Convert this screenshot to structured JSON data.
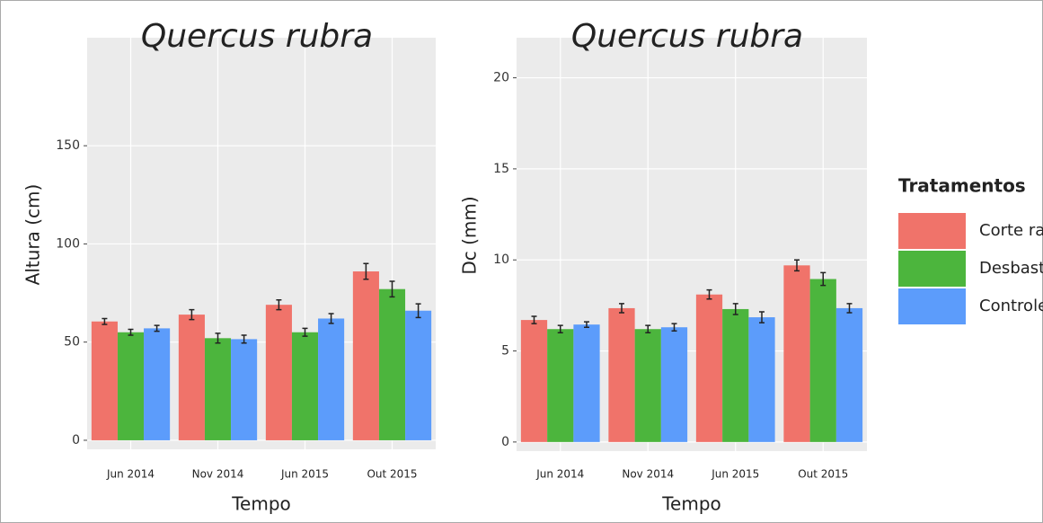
{
  "chart_data": [
    {
      "type": "bar",
      "title": "Quercus rubra",
      "y_label": "Altura (cm)",
      "x_label": "Tempo",
      "categories": [
        "Jun 2014",
        "Nov 2014",
        "Jun 2015",
        "Out  2015"
      ],
      "series": [
        {
          "color": "#f0736a",
          "values": [
            60.5,
            64,
            69,
            86
          ],
          "errors": [
            1.5,
            2.5,
            2.5,
            4
          ]
        },
        {
          "color": "#4cb53d",
          "values": [
            55,
            52,
            55,
            77
          ],
          "errors": [
            1.5,
            2.5,
            2,
            4
          ]
        },
        {
          "color": "#5c9cfb",
          "values": [
            57,
            51.5,
            62,
            66
          ],
          "errors": [
            1.5,
            2,
            2.5,
            3.5
          ]
        }
      ],
      "ylim": [
        -4.6,
        205
      ],
      "yticks": [
        0,
        50,
        100,
        150
      ],
      "grid": true
    },
    {
      "type": "bar",
      "title": "Quercus rubra",
      "y_label": "Dc (mm)",
      "x_label": "Tempo",
      "categories": [
        "Jun 2014",
        "Nov 2014",
        "Jun 2015",
        "Out  2015"
      ],
      "series": [
        {
          "color": "#f0736a",
          "values": [
            6.7,
            7.35,
            8.1,
            9.7
          ],
          "errors": [
            0.2,
            0.25,
            0.25,
            0.3
          ]
        },
        {
          "color": "#4cb53d",
          "values": [
            6.2,
            6.2,
            7.3,
            8.95
          ],
          "errors": [
            0.2,
            0.2,
            0.3,
            0.35
          ]
        },
        {
          "color": "#5c9cfb",
          "values": [
            6.45,
            6.3,
            6.85,
            7.35
          ],
          "errors": [
            0.15,
            0.2,
            0.3,
            0.25
          ]
        }
      ],
      "ylim": [
        -0.5,
        22.2
      ],
      "yticks": [
        0,
        5,
        10,
        15,
        20
      ],
      "grid": true
    }
  ],
  "legend": {
    "title": "Tratamentos",
    "labels": [
      "Corte raso",
      "Desbaste",
      "Controle"
    ]
  }
}
